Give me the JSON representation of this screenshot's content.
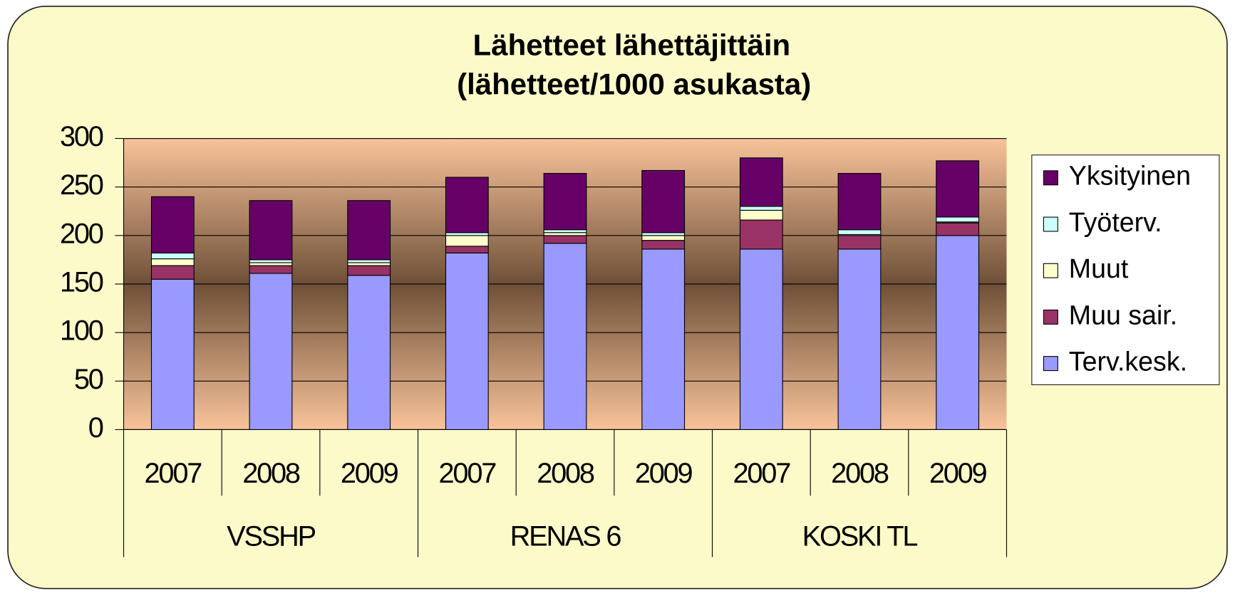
{
  "chart_data": {
    "type": "stacked-bar",
    "title": [
      "Lähetteet lähettäjittäin",
      "(lähetteet/1000 asukasta)"
    ],
    "categories": [
      "2007",
      "2008",
      "2009",
      "2007",
      "2008",
      "2009",
      "2007",
      "2008",
      "2009"
    ],
    "groups": [
      "VSSHP",
      "RENAS 6",
      "KOSKI TL"
    ],
    "series": [
      {
        "name": "Terv.kesk.",
        "color": "#9999ff",
        "values": [
          155,
          161,
          159,
          182,
          192,
          186,
          186,
          186,
          200
        ]
      },
      {
        "name": "Muu sair.",
        "color": "#993366",
        "values": [
          14,
          8,
          10,
          7,
          8,
          9,
          30,
          14,
          13
        ]
      },
      {
        "name": "Muut",
        "color": "#ffffcc",
        "values": [
          7,
          3,
          3,
          11,
          3,
          5,
          10,
          1,
          1
        ]
      },
      {
        "name": "Työterv.",
        "color": "#ccffff",
        "values": [
          6,
          3,
          3,
          3,
          3,
          3,
          4,
          5,
          5
        ]
      },
      {
        "name": "Yksityinen",
        "color": "#660066",
        "values": [
          58,
          61,
          61,
          57,
          58,
          64,
          50,
          58,
          58
        ]
      }
    ],
    "ylim": [
      0,
      300
    ],
    "yticks": [
      0,
      50,
      100,
      150,
      200,
      250,
      300
    ],
    "grid": true,
    "legend": "right"
  }
}
